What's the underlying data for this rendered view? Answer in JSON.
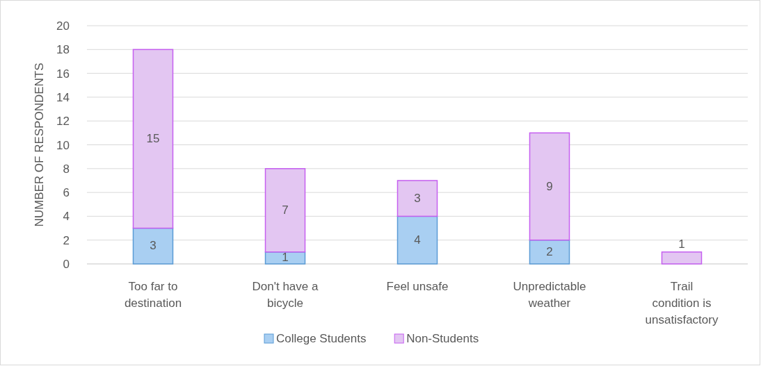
{
  "chart_data": {
    "type": "bar",
    "stacked": true,
    "ylabel": "NUMBER OF RESPONDENTS",
    "categories": [
      "Too far to destination",
      "Don't have a bicycle",
      "Feel unsafe",
      "Unpredictable weather",
      "Trail condition is unsatisfactory"
    ],
    "series": [
      {
        "name": "College Students",
        "color": "#a9cff2",
        "values": [
          3,
          1,
          4,
          2,
          0
        ],
        "value_labels": [
          "3",
          "1",
          "4",
          "2",
          null
        ]
      },
      {
        "name": "Non-Students",
        "color": "#e3c6f2",
        "values": [
          15,
          7,
          3,
          9,
          1
        ],
        "value_labels": [
          "15",
          "7",
          "3",
          "9",
          "1"
        ]
      }
    ],
    "ylim": [
      0,
      20
    ],
    "yticks": [
      0,
      2,
      4,
      6,
      8,
      10,
      12,
      14,
      16,
      18,
      20
    ],
    "grid": "y",
    "legend": "bottom"
  }
}
